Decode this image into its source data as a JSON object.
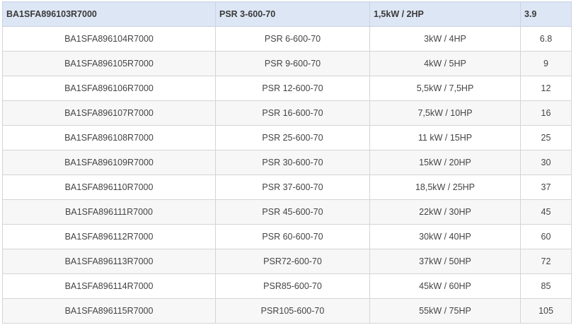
{
  "table": {
    "header": [
      "BA1SFA896103R7000",
      "PSR 3-600-70",
      "1,5kW / 2HP",
      "3.9"
    ],
    "rows": [
      [
        "BA1SFA896104R7000",
        "PSR 6-600-70",
        "3kW / 4HP",
        "6.8"
      ],
      [
        "BA1SFA896105R7000",
        "PSR 9-600-70",
        "4kW / 5HP",
        "9"
      ],
      [
        "BA1SFA896106R7000",
        "PSR 12-600-70",
        "5,5kW / 7,5HP",
        "12"
      ],
      [
        "BA1SFA896107R7000",
        "PSR 16-600-70",
        "7,5kW / 10HP",
        "16"
      ],
      [
        "BA1SFA896108R7000",
        "PSR 25-600-70",
        "11 kW / 15HP",
        "25"
      ],
      [
        "BA1SFA896109R7000",
        "PSR 30-600-70",
        "15kW / 20HP",
        "30"
      ],
      [
        "BA1SFA896110R7000",
        "PSR 37-600-70",
        "18,5kW / 25HP",
        "37"
      ],
      [
        "BA1SFA896111R7000",
        "PSR 45-600-70",
        "22kW / 30HP",
        "45"
      ],
      [
        "BA1SFA896112R7000",
        "PSR 60-600-70",
        "30kW / 40HP",
        "60"
      ],
      [
        "BA1SFA896113R7000",
        "PSR72-600-70",
        "37kW / 50HP",
        "72"
      ],
      [
        "BA1SFA896114R7000",
        "PSR85-600-70",
        "45kW / 60HP",
        "85"
      ],
      [
        "BA1SFA896115R7000",
        "PSR105-600-70",
        "55kW / 75HP",
        "105"
      ]
    ]
  }
}
